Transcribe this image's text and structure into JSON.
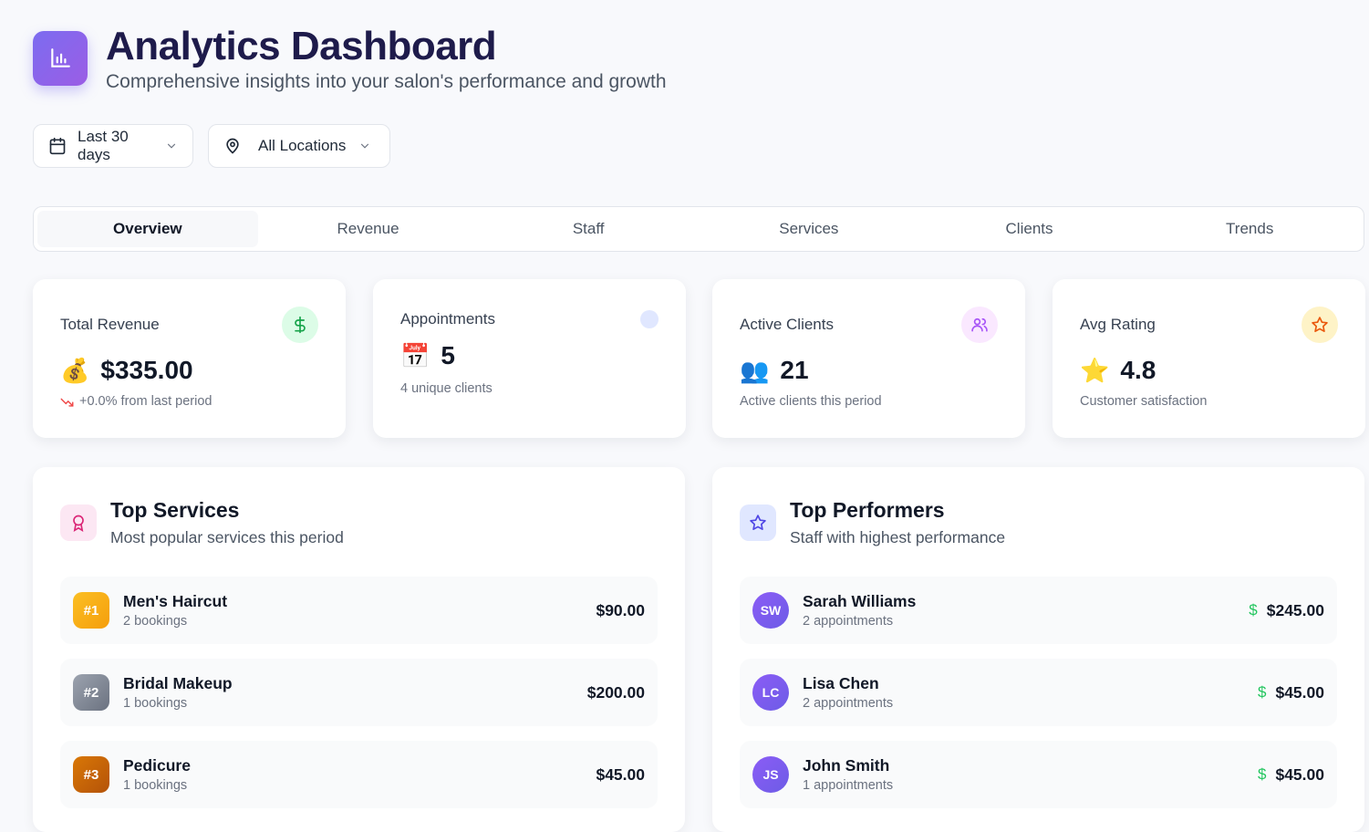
{
  "header": {
    "title": "Analytics Dashboard",
    "subtitle": "Comprehensive insights into your salon's performance and growth",
    "logo_icon": "bar-chart-icon"
  },
  "filters": {
    "date_range": "Last 30 days",
    "location": "All Locations"
  },
  "tabs": [
    {
      "label": "Overview",
      "active": true
    },
    {
      "label": "Revenue",
      "active": false
    },
    {
      "label": "Staff",
      "active": false
    },
    {
      "label": "Services",
      "active": false
    },
    {
      "label": "Clients",
      "active": false
    },
    {
      "label": "Trends",
      "active": false
    }
  ],
  "stats": [
    {
      "label": "Total Revenue",
      "emoji": "💰",
      "value": "$335.00",
      "sub": "+0.0% from last period",
      "icon": "dollar-icon",
      "trend_icon": "trending-down-icon"
    },
    {
      "label": "Appointments",
      "emoji": "📅",
      "value": "5",
      "sub": "4 unique clients",
      "icon": "dot-icon"
    },
    {
      "label": "Active Clients",
      "emoji": "👥",
      "value": "21",
      "sub": "Active clients this period",
      "icon": "users-icon"
    },
    {
      "label": "Avg Rating",
      "emoji": "⭐",
      "value": "4.8",
      "sub": "Customer satisfaction",
      "icon": "star-icon"
    }
  ],
  "top_services": {
    "title": "Top Services",
    "subtitle": "Most popular services this period",
    "items": [
      {
        "rank": "#1",
        "name": "Men's Haircut",
        "sub": "2 bookings",
        "amount": "$90.00",
        "color": "#f59e0b"
      },
      {
        "rank": "#2",
        "name": "Bridal Makeup",
        "sub": "1 bookings",
        "amount": "$200.00",
        "color": "#6b7280"
      },
      {
        "rank": "#3",
        "name": "Pedicure",
        "sub": "1 bookings",
        "amount": "$45.00",
        "color": "#d97706"
      }
    ]
  },
  "top_performers": {
    "title": "Top Performers",
    "subtitle": "Staff with highest performance",
    "items": [
      {
        "initials": "SW",
        "name": "Sarah Williams",
        "sub": "2 appointments",
        "amount": "$245.00"
      },
      {
        "initials": "LC",
        "name": "Lisa Chen",
        "sub": "2 appointments",
        "amount": "$45.00"
      },
      {
        "initials": "JS",
        "name": "John Smith",
        "sub": "1 appointments",
        "amount": "$45.00"
      }
    ]
  },
  "colors": {
    "accent": "#7c6cf0",
    "title": "#1e1b4b",
    "positive": "#22c55e",
    "negative": "#ef4444"
  }
}
